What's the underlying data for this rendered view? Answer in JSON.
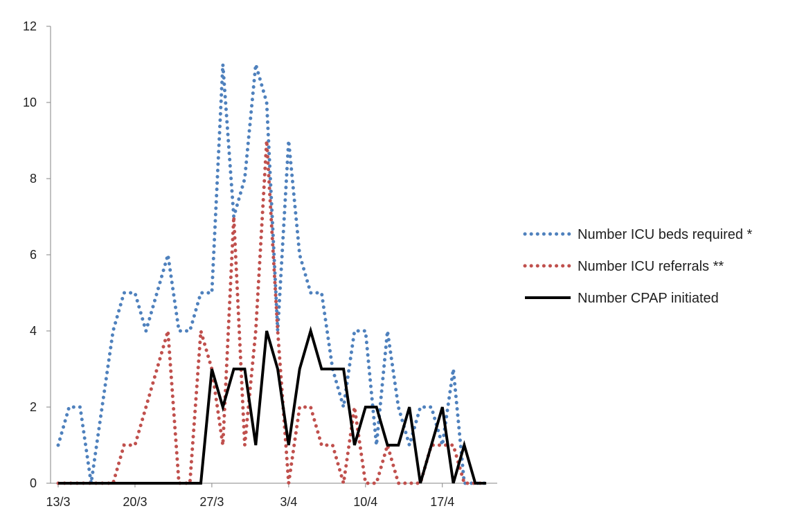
{
  "chart_data": {
    "type": "line",
    "title": "",
    "xlabel": "",
    "ylabel": "",
    "x_start_date": "13/3",
    "x_tick_labels": [
      "13/3",
      "20/3",
      "27/3",
      "3/4",
      "10/4",
      "17/4"
    ],
    "y_tick_labels": [
      "0",
      "2",
      "4",
      "6",
      "8",
      "10",
      "12"
    ],
    "ylim": [
      0,
      12
    ],
    "grid": false,
    "legend_position": "right",
    "series": [
      {
        "name": "Number ICU beds required *",
        "color": "#4f81bd",
        "style": "dotted",
        "values": [
          1,
          2,
          2,
          0,
          2,
          4,
          5,
          5,
          4,
          5,
          6,
          4,
          4,
          5,
          5,
          11,
          7,
          8,
          11,
          10,
          4,
          9,
          6,
          5,
          5,
          3,
          2,
          4,
          4,
          1,
          4,
          2,
          1,
          2,
          2,
          1,
          3,
          0,
          0,
          0
        ]
      },
      {
        "name": "Number ICU referrals **",
        "color": "#c0504d",
        "style": "dotted",
        "values": [
          0,
          0,
          0,
          0,
          0,
          0,
          1,
          1,
          2,
          3,
          4,
          0,
          0,
          4,
          3,
          1,
          7,
          1,
          4,
          9,
          4,
          0,
          2,
          2,
          1,
          1,
          0,
          2,
          0,
          0,
          1,
          0,
          0,
          0,
          1,
          1,
          1,
          0,
          0,
          0
        ]
      },
      {
        "name": "Number CPAP initiated",
        "color": "#000000",
        "style": "solid",
        "values": [
          0,
          0,
          0,
          0,
          0,
          0,
          0,
          0,
          0,
          0,
          0,
          0,
          0,
          0,
          3,
          2,
          3,
          3,
          1,
          4,
          3,
          1,
          3,
          4,
          3,
          3,
          3,
          1,
          2,
          2,
          1,
          1,
          2,
          0,
          1,
          2,
          0,
          1,
          0,
          0
        ]
      }
    ]
  }
}
